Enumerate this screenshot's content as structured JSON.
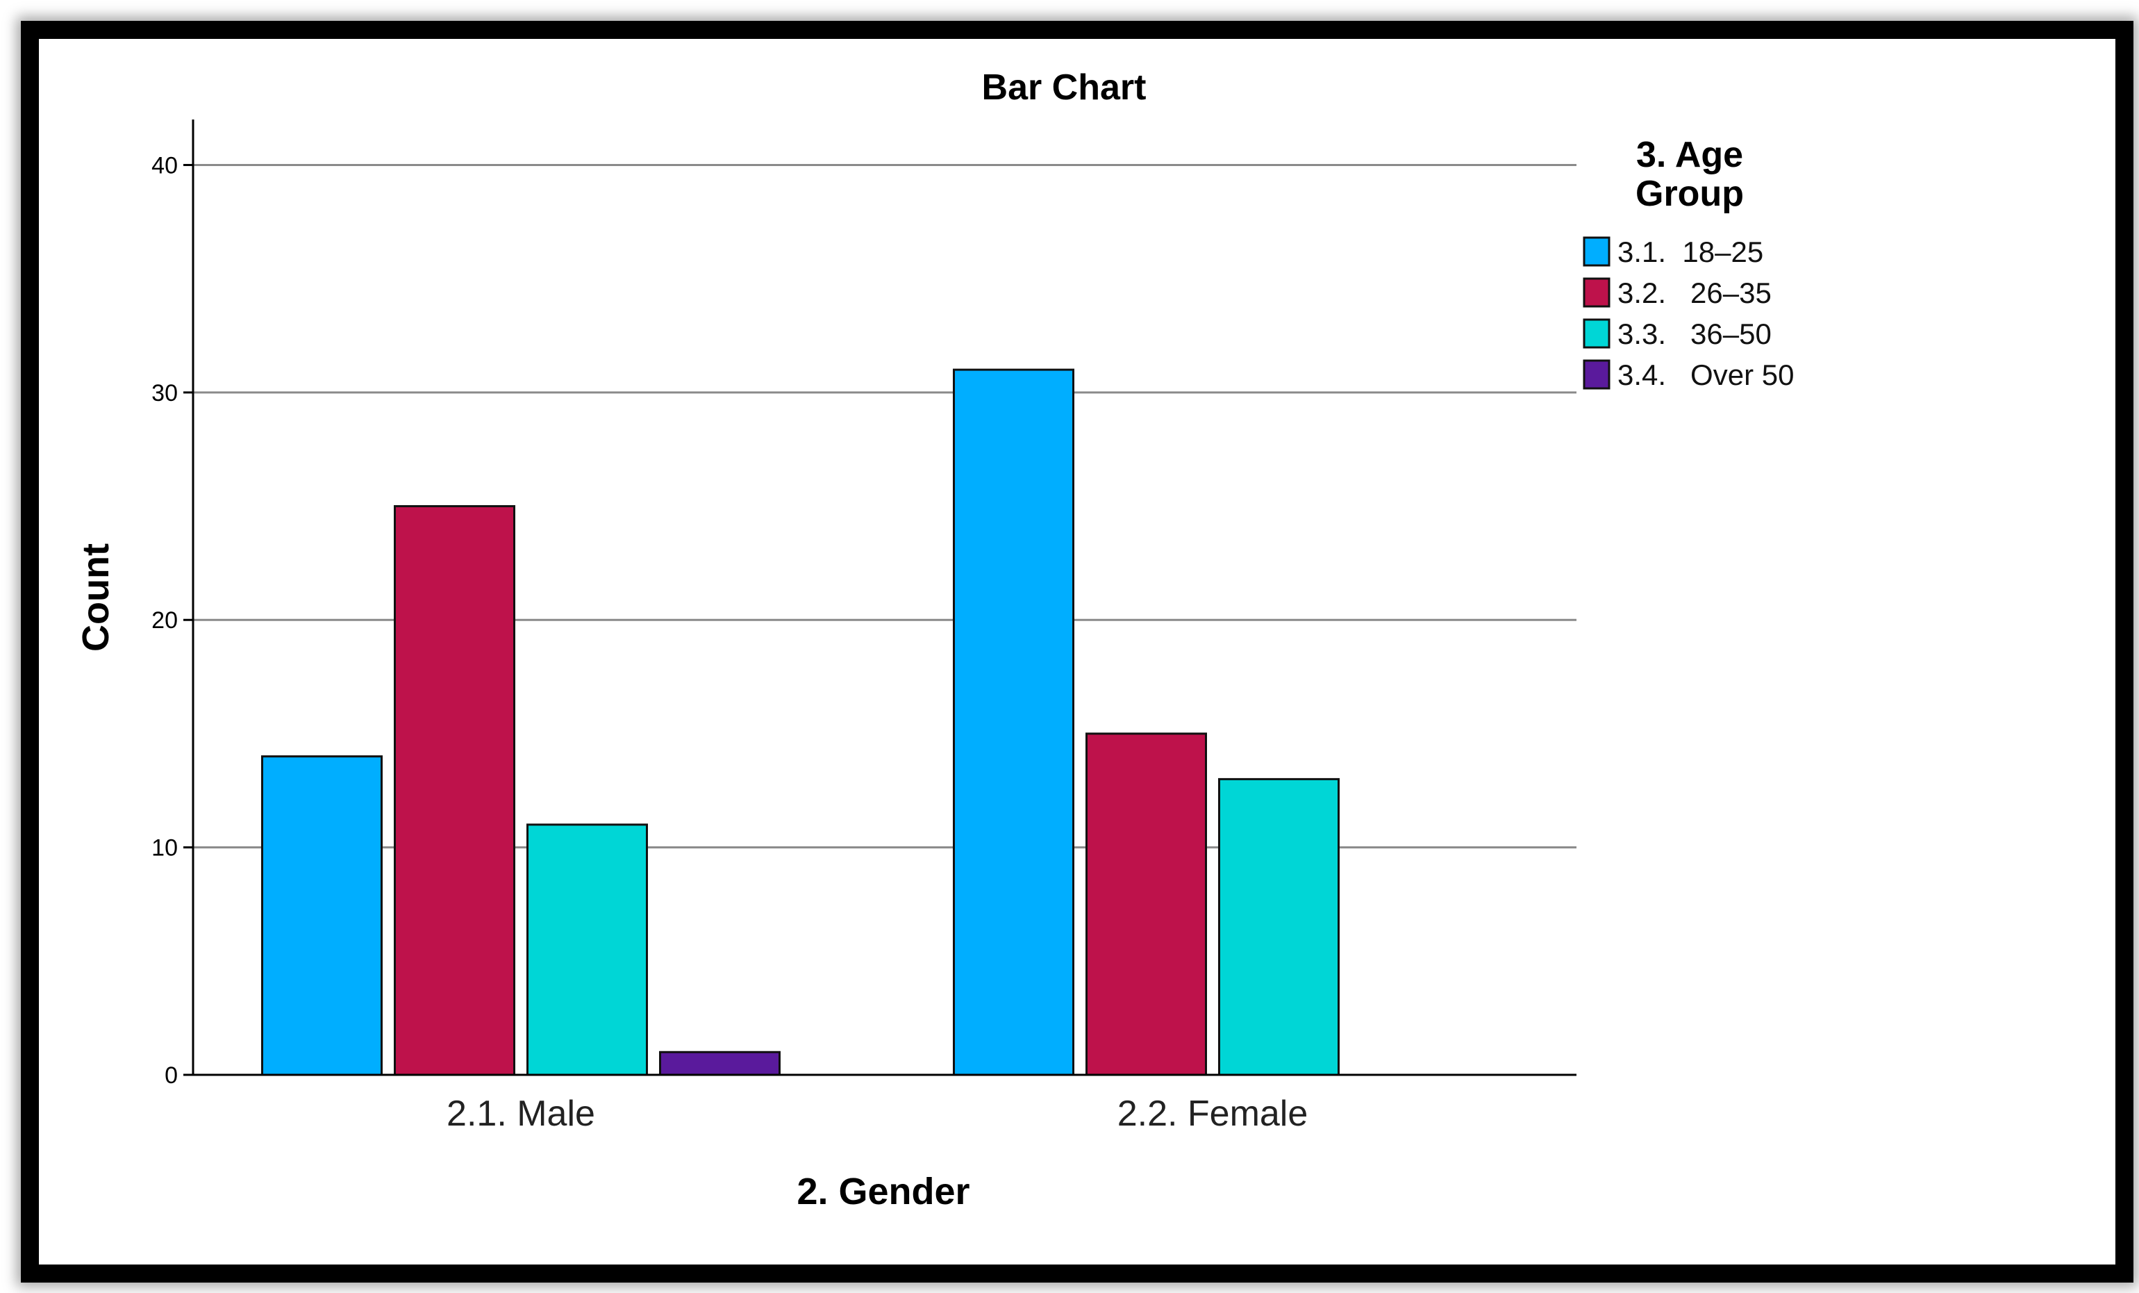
{
  "chart_data": {
    "type": "bar",
    "title": "Bar Chart",
    "xlabel": "2. Gender",
    "ylabel": "Count",
    "categories": [
      "2.1. Male",
      "2.2. Female"
    ],
    "legend_title": [
      "3. Age",
      "Group"
    ],
    "legend_position": "top-right",
    "ylim": [
      0,
      42
    ],
    "yticks": [
      0,
      10,
      20,
      30,
      40
    ],
    "grid": true,
    "series": [
      {
        "name": "3.1.  18–25",
        "color": "#00aeff",
        "values": [
          14,
          31
        ]
      },
      {
        "name": "3.2.   26–35",
        "color": "#be124b",
        "values": [
          25,
          15
        ]
      },
      {
        "name": "3.3.   36–50",
        "color": "#00d6d6",
        "values": [
          11,
          13
        ]
      },
      {
        "name": "3.4.   Over 50",
        "color": "#5a1a9c",
        "values": [
          1,
          0
        ]
      }
    ]
  }
}
